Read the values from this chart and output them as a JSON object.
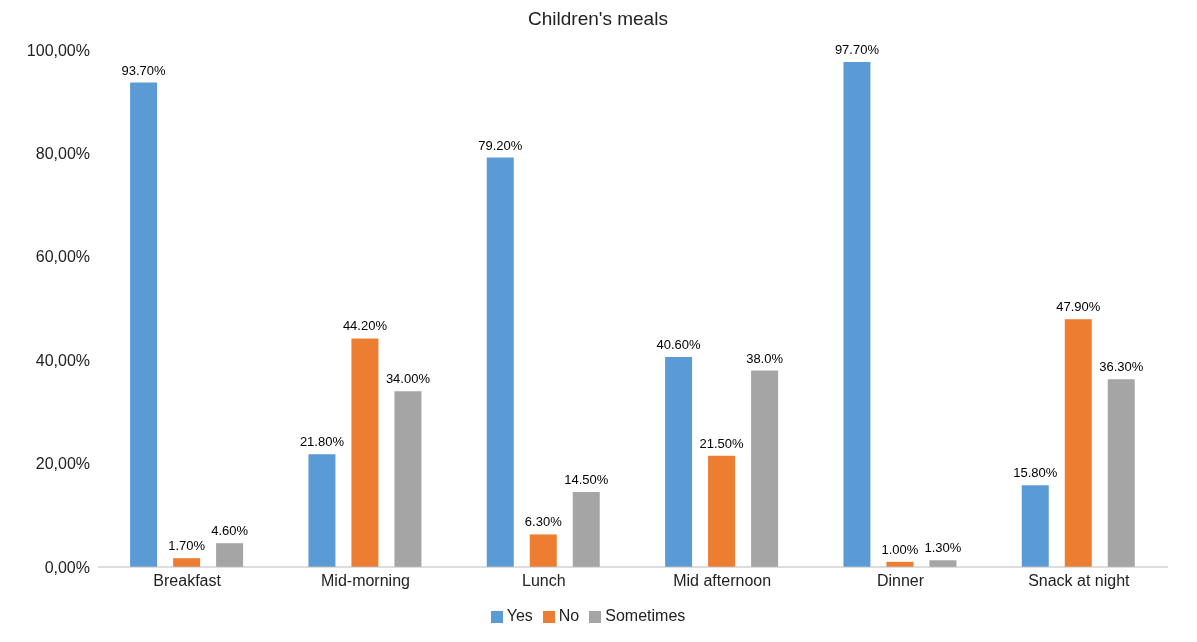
{
  "chart_data": {
    "type": "bar",
    "title": "Children's meals",
    "categories": [
      "Breakfast",
      "Mid-morning",
      "Lunch",
      "Mid afternoon",
      "Dinner",
      "Snack at night"
    ],
    "series": [
      {
        "name": "Yes",
        "color": "#5b9bd5",
        "values": [
          93.7,
          21.8,
          79.2,
          40.6,
          97.7,
          15.8
        ],
        "value_labels": [
          "93.70%",
          "21.80%",
          "79.20%",
          "40.60%",
          "97.70%",
          "15.80%"
        ]
      },
      {
        "name": "No",
        "color": "#ed7d31",
        "values": [
          1.7,
          44.2,
          6.3,
          21.5,
          1.0,
          47.9
        ],
        "value_labels": [
          "1.70%",
          "44.20%",
          "6.30%",
          "21.50%",
          "1.00%",
          "47.90%"
        ]
      },
      {
        "name": "Sometimes",
        "color": "#a5a5a5",
        "values": [
          4.6,
          34.0,
          14.5,
          38.0,
          1.3,
          36.3
        ],
        "value_labels": [
          "4.60%",
          "34.00%",
          "14.50%",
          "38.0%",
          "1.30%",
          "36.30%"
        ]
      }
    ],
    "ylim": [
      0,
      100
    ],
    "yticks": [
      {
        "value": 0,
        "label": "0,00%"
      },
      {
        "value": 20,
        "label": "20,00%"
      },
      {
        "value": 40,
        "label": "40,00%"
      },
      {
        "value": 60,
        "label": "60,00%"
      },
      {
        "value": 80,
        "label": "80,00%"
      },
      {
        "value": 100,
        "label": "100,00%"
      }
    ],
    "legend": "bottom"
  }
}
